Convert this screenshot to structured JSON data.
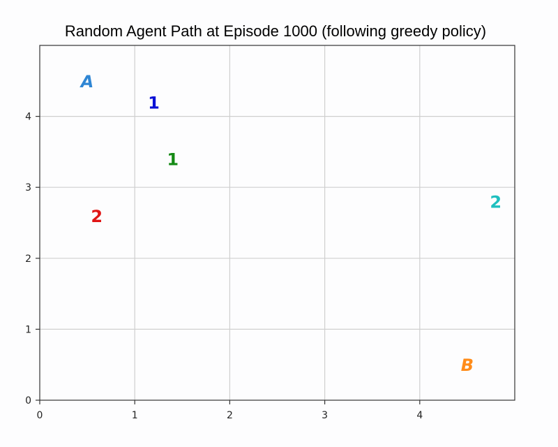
{
  "chart_data": {
    "type": "scatter",
    "title": "Random Agent Path at Episode 1000 (following greedy policy)",
    "xlabel": "",
    "ylabel": "",
    "xlim": [
      0,
      5
    ],
    "ylim": [
      0,
      5
    ],
    "xticks": [
      0,
      1,
      2,
      3,
      4
    ],
    "yticks": [
      0,
      1,
      2,
      3,
      4
    ],
    "grid": true,
    "points": [
      {
        "label": "A",
        "x": 0.5,
        "y": 4.5,
        "color": "#2f86d4",
        "italic": true
      },
      {
        "label": "1",
        "x": 1.2,
        "y": 4.2,
        "color": "#0b11d6",
        "italic": false
      },
      {
        "label": "1",
        "x": 1.4,
        "y": 3.4,
        "color": "#158a15",
        "italic": false
      },
      {
        "label": "2",
        "x": 0.6,
        "y": 2.6,
        "color": "#e01515",
        "italic": false
      },
      {
        "label": "2",
        "x": 4.8,
        "y": 2.8,
        "color": "#1fbfbf",
        "italic": false
      },
      {
        "label": "B",
        "x": 4.5,
        "y": 0.5,
        "color": "#ff8c1a",
        "italic": true
      }
    ]
  }
}
